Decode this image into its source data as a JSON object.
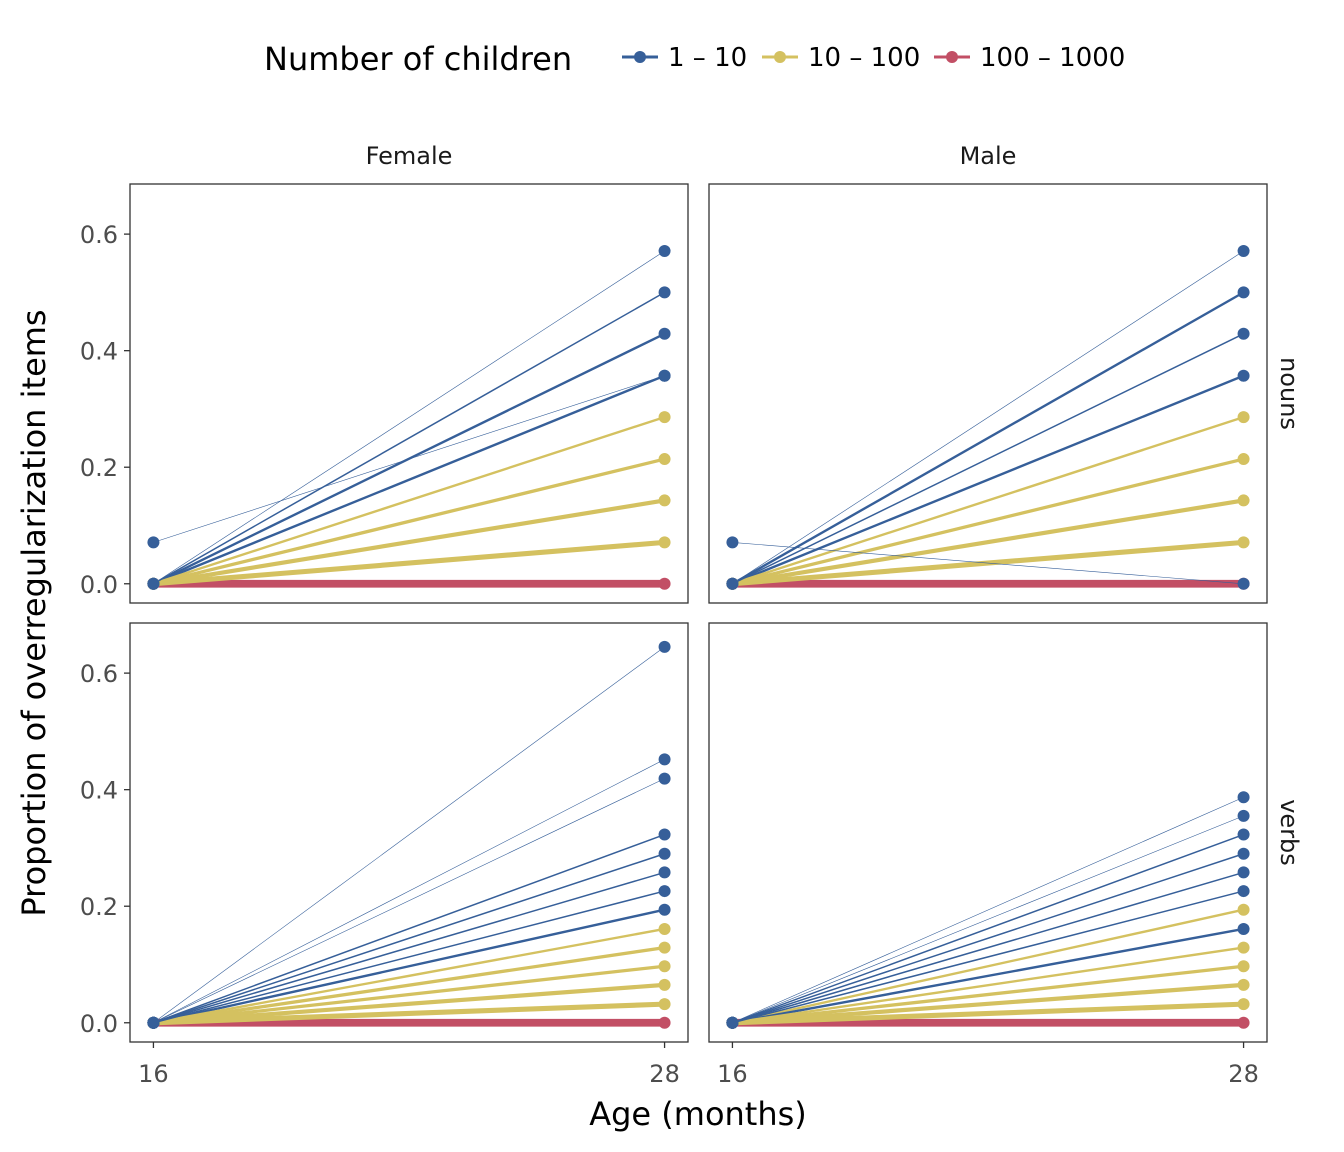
{
  "chart_data": {
    "type": "line",
    "legend": {
      "title": "Number of children",
      "position": "top",
      "entries": [
        {
          "label": "1 – 10",
          "color": "#365f99"
        },
        {
          "label": "10 – 100",
          "color": "#d4c160"
        },
        {
          "label": "100 – 1000",
          "color": "#c24f65"
        }
      ]
    },
    "xlabel": "Age (months)",
    "ylabel": "Proportion of overregularization items",
    "x_ticks": [
      "16",
      "28"
    ],
    "y_ticks": [
      "0.0",
      "0.2",
      "0.4",
      "0.6"
    ],
    "xlim": [
      15.45,
      28.55
    ],
    "ylim": [
      -0.033,
      0.686
    ],
    "grid": false,
    "col_facets": [
      "Female",
      "Male"
    ],
    "row_facets": [
      "nouns",
      "verbs"
    ],
    "panels": [
      {
        "gender": "Female",
        "measure": "nouns",
        "segments": [
          {
            "y16": 0.071,
            "y28": 0.357,
            "group": 0,
            "width": 1
          },
          {
            "y16": 0,
            "y28": 0.571,
            "group": 0,
            "width": 1
          },
          {
            "y16": 0,
            "y28": 0.5,
            "group": 0,
            "width": 2
          },
          {
            "y16": 0,
            "y28": 0.429,
            "group": 0,
            "width": 3
          },
          {
            "y16": 0,
            "y28": 0.357,
            "group": 0,
            "width": 3
          },
          {
            "y16": 0,
            "y28": 0.286,
            "group": 1,
            "width": 3
          },
          {
            "y16": 0,
            "y28": 0.214,
            "group": 1,
            "width": 4
          },
          {
            "y16": 0,
            "y28": 0.143,
            "group": 1,
            "width": 5
          },
          {
            "y16": 0,
            "y28": 0.071,
            "group": 1,
            "width": 6
          },
          {
            "y16": 0,
            "y28": 0,
            "group": 2,
            "width": 9
          }
        ]
      },
      {
        "gender": "Male",
        "measure": "nouns",
        "segments": [
          {
            "y16": 0.071,
            "y28": 0,
            "group": 0,
            "width": 1
          },
          {
            "y16": 0,
            "y28": 0.571,
            "group": 0,
            "width": 1
          },
          {
            "y16": 0,
            "y28": 0.5,
            "group": 0,
            "width": 3
          },
          {
            "y16": 0,
            "y28": 0.429,
            "group": 0,
            "width": 2
          },
          {
            "y16": 0,
            "y28": 0.357,
            "group": 0,
            "width": 3
          },
          {
            "y16": 0,
            "y28": 0.286,
            "group": 1,
            "width": 3
          },
          {
            "y16": 0,
            "y28": 0.214,
            "group": 1,
            "width": 4
          },
          {
            "y16": 0,
            "y28": 0.143,
            "group": 1,
            "width": 5
          },
          {
            "y16": 0,
            "y28": 0.071,
            "group": 1,
            "width": 6
          },
          {
            "y16": 0,
            "y28": 0,
            "group": 2,
            "width": 9
          }
        ]
      },
      {
        "gender": "Female",
        "measure": "verbs",
        "segments": [
          {
            "y16": 0,
            "y28": 0.645,
            "group": 0,
            "width": 1
          },
          {
            "y16": 0,
            "y28": 0.452,
            "group": 0,
            "width": 1
          },
          {
            "y16": 0,
            "y28": 0.419,
            "group": 0,
            "width": 1
          },
          {
            "y16": 0,
            "y28": 0.323,
            "group": 0,
            "width": 2
          },
          {
            "y16": 0,
            "y28": 0.29,
            "group": 0,
            "width": 2
          },
          {
            "y16": 0,
            "y28": 0.258,
            "group": 0,
            "width": 2
          },
          {
            "y16": 0,
            "y28": 0.226,
            "group": 0,
            "width": 2
          },
          {
            "y16": 0,
            "y28": 0.194,
            "group": 0,
            "width": 3
          },
          {
            "y16": 0,
            "y28": 0.161,
            "group": 1,
            "width": 3
          },
          {
            "y16": 0,
            "y28": 0.129,
            "group": 1,
            "width": 4
          },
          {
            "y16": 0,
            "y28": 0.097,
            "group": 1,
            "width": 4
          },
          {
            "y16": 0,
            "y28": 0.065,
            "group": 1,
            "width": 5
          },
          {
            "y16": 0,
            "y28": 0.032,
            "group": 1,
            "width": 6
          },
          {
            "y16": 0,
            "y28": 0,
            "group": 2,
            "width": 9
          }
        ]
      },
      {
        "gender": "Male",
        "measure": "verbs",
        "segments": [
          {
            "y16": 0,
            "y28": 0.387,
            "group": 0,
            "width": 1
          },
          {
            "y16": 0,
            "y28": 0.355,
            "group": 0,
            "width": 1
          },
          {
            "y16": 0,
            "y28": 0.323,
            "group": 0,
            "width": 2
          },
          {
            "y16": 0,
            "y28": 0.29,
            "group": 0,
            "width": 2
          },
          {
            "y16": 0,
            "y28": 0.258,
            "group": 0,
            "width": 2
          },
          {
            "y16": 0,
            "y28": 0.226,
            "group": 0,
            "width": 2
          },
          {
            "y16": 0,
            "y28": 0.194,
            "group": 1,
            "width": 3
          },
          {
            "y16": 0,
            "y28": 0.161,
            "group": 0,
            "width": 3
          },
          {
            "y16": 0,
            "y28": 0.129,
            "group": 1,
            "width": 3
          },
          {
            "y16": 0,
            "y28": 0.097,
            "group": 1,
            "width": 4
          },
          {
            "y16": 0,
            "y28": 0.065,
            "group": 1,
            "width": 5
          },
          {
            "y16": 0,
            "y28": 0.032,
            "group": 1,
            "width": 6
          },
          {
            "y16": 0,
            "y28": 0,
            "group": 2,
            "width": 9
          }
        ]
      }
    ]
  }
}
